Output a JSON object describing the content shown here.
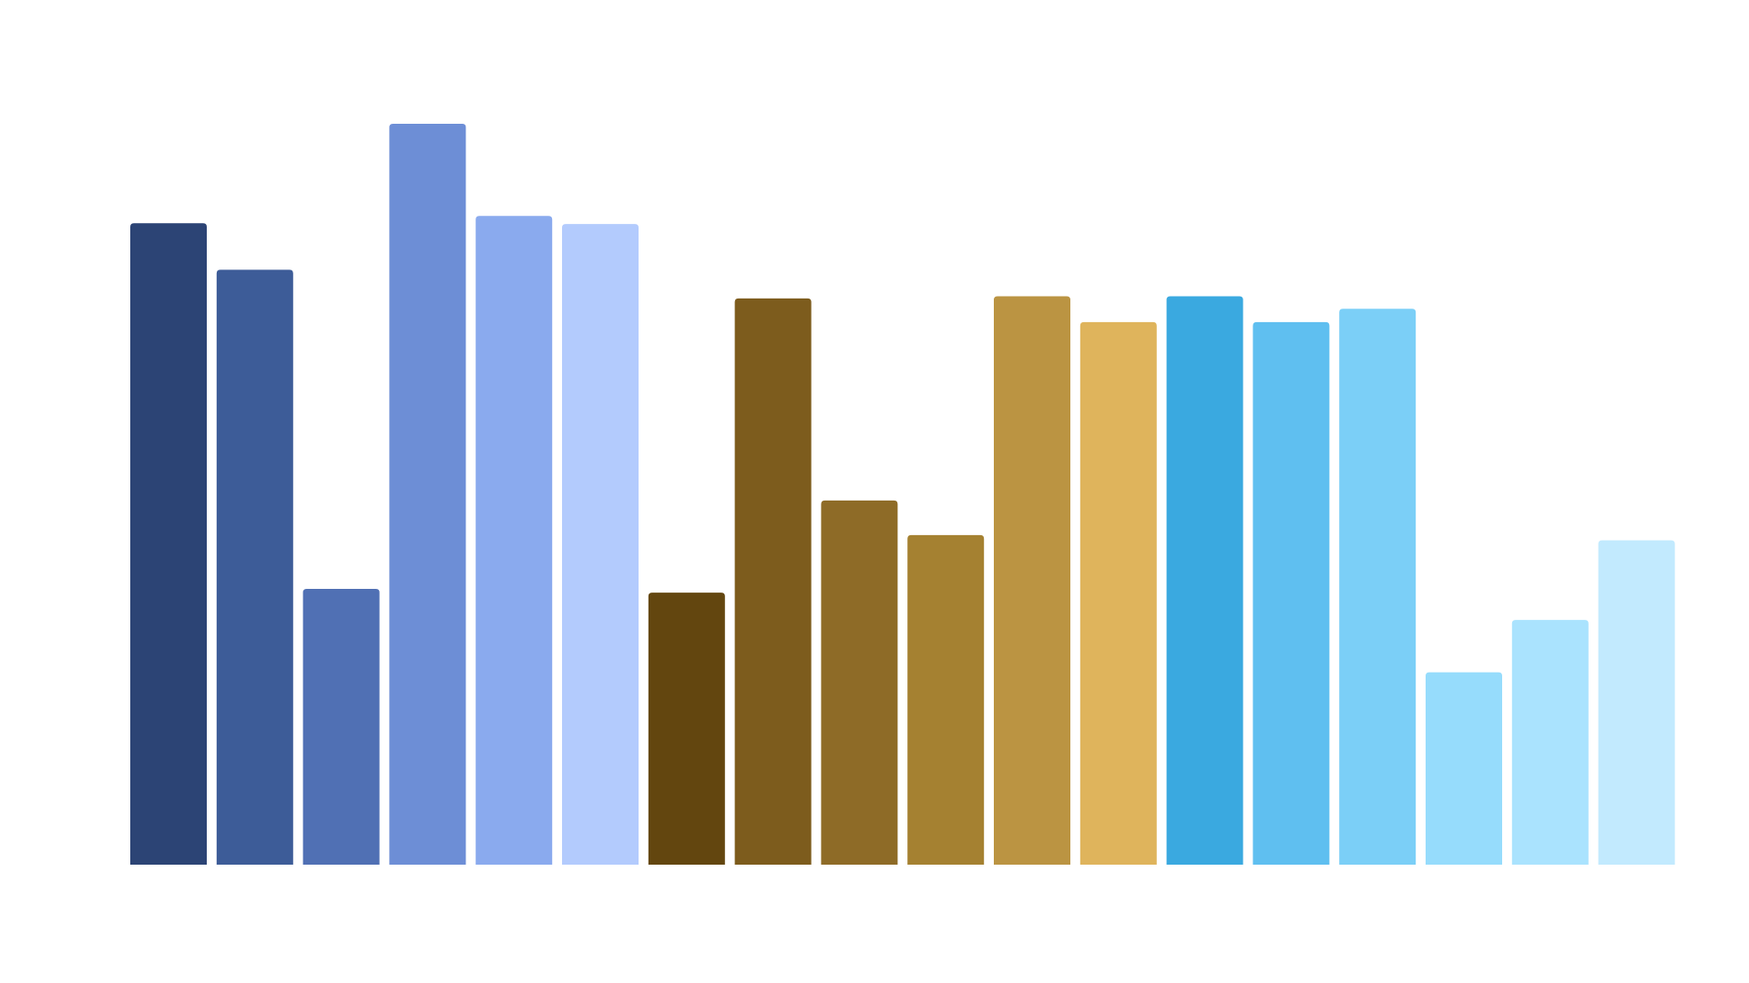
{
  "chart_data": {
    "type": "bar",
    "title": "",
    "xlabel": "",
    "ylabel": "",
    "grid": false,
    "legend": "none",
    "ylim": [
      0,
      100
    ],
    "values": [
      87,
      80.7,
      37.4,
      100.5,
      88,
      86.9,
      36.9,
      76.8,
      49.4,
      44.7,
      77.1,
      73.6,
      77.1,
      73.6,
      75.4,
      26.1,
      33.2,
      44
    ],
    "colors": [
      "#2c4475",
      "#3d5c98",
      "#5070b4",
      "#6d8ed6",
      "#8aaaee",
      "#b3cbfd",
      "#63460f",
      "#7d5c1d",
      "#8e6b27",
      "#a58131",
      "#bb9442",
      "#dfb45c",
      "#3aa9e0",
      "#5fbff0",
      "#7bcff7",
      "#96dcfc",
      "#aae3fe",
      "#c2eafe"
    ]
  }
}
